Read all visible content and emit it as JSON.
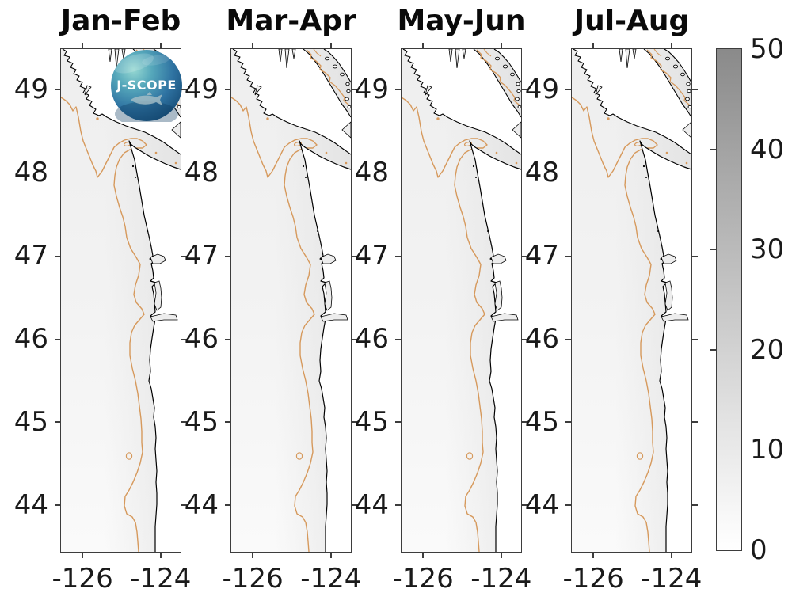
{
  "figure": {
    "background": "#ffffff"
  },
  "panels": [
    {
      "title": "Jan-Feb"
    },
    {
      "title": "Mar-Apr"
    },
    {
      "title": "May-Jun"
    },
    {
      "title": "Jul-Aug"
    }
  ],
  "logo": {
    "text": "J-SCOPE"
  },
  "colorbar": {
    "min": 0,
    "max": 50,
    "ticks": [
      0,
      10,
      20,
      30,
      40,
      50
    ]
  },
  "chart_data": {
    "type": "map_contour_panels",
    "panel_titles": [
      "Jan-Feb",
      "Mar-Apr",
      "May-Jun",
      "Jul-Aug"
    ],
    "region": "U.S. Pacific Northwest coast: Washington-Oregon shelf, Strait of Juan de Fuca, southern Vancouver Island and Strait of Georgia",
    "lon_range": [
      -126.55,
      -123.49
    ],
    "lat_range": [
      43.44,
      49.49
    ],
    "lon_ticks": [
      -126,
      -124
    ],
    "lat_ticks": [
      49,
      48,
      47,
      46,
      45,
      44
    ],
    "colorbar": {
      "min": 0,
      "max": 50,
      "ticks": [
        0,
        10,
        20,
        30,
        40,
        50
      ],
      "colormap": "white-to-gray (0 = white, 50 = dark gray)"
    },
    "field_note": "Mapped field values are near 0 (white to very light gray) over the whole ocean domain in all four bimonthly panels; identical coastline and tan shelf-bathymetry contours repeat in each panel",
    "contour_color": "#d6995c",
    "coastline_color": "#000000",
    "ocean_color": "#f1f1f1",
    "land_color": "#ffffff"
  }
}
